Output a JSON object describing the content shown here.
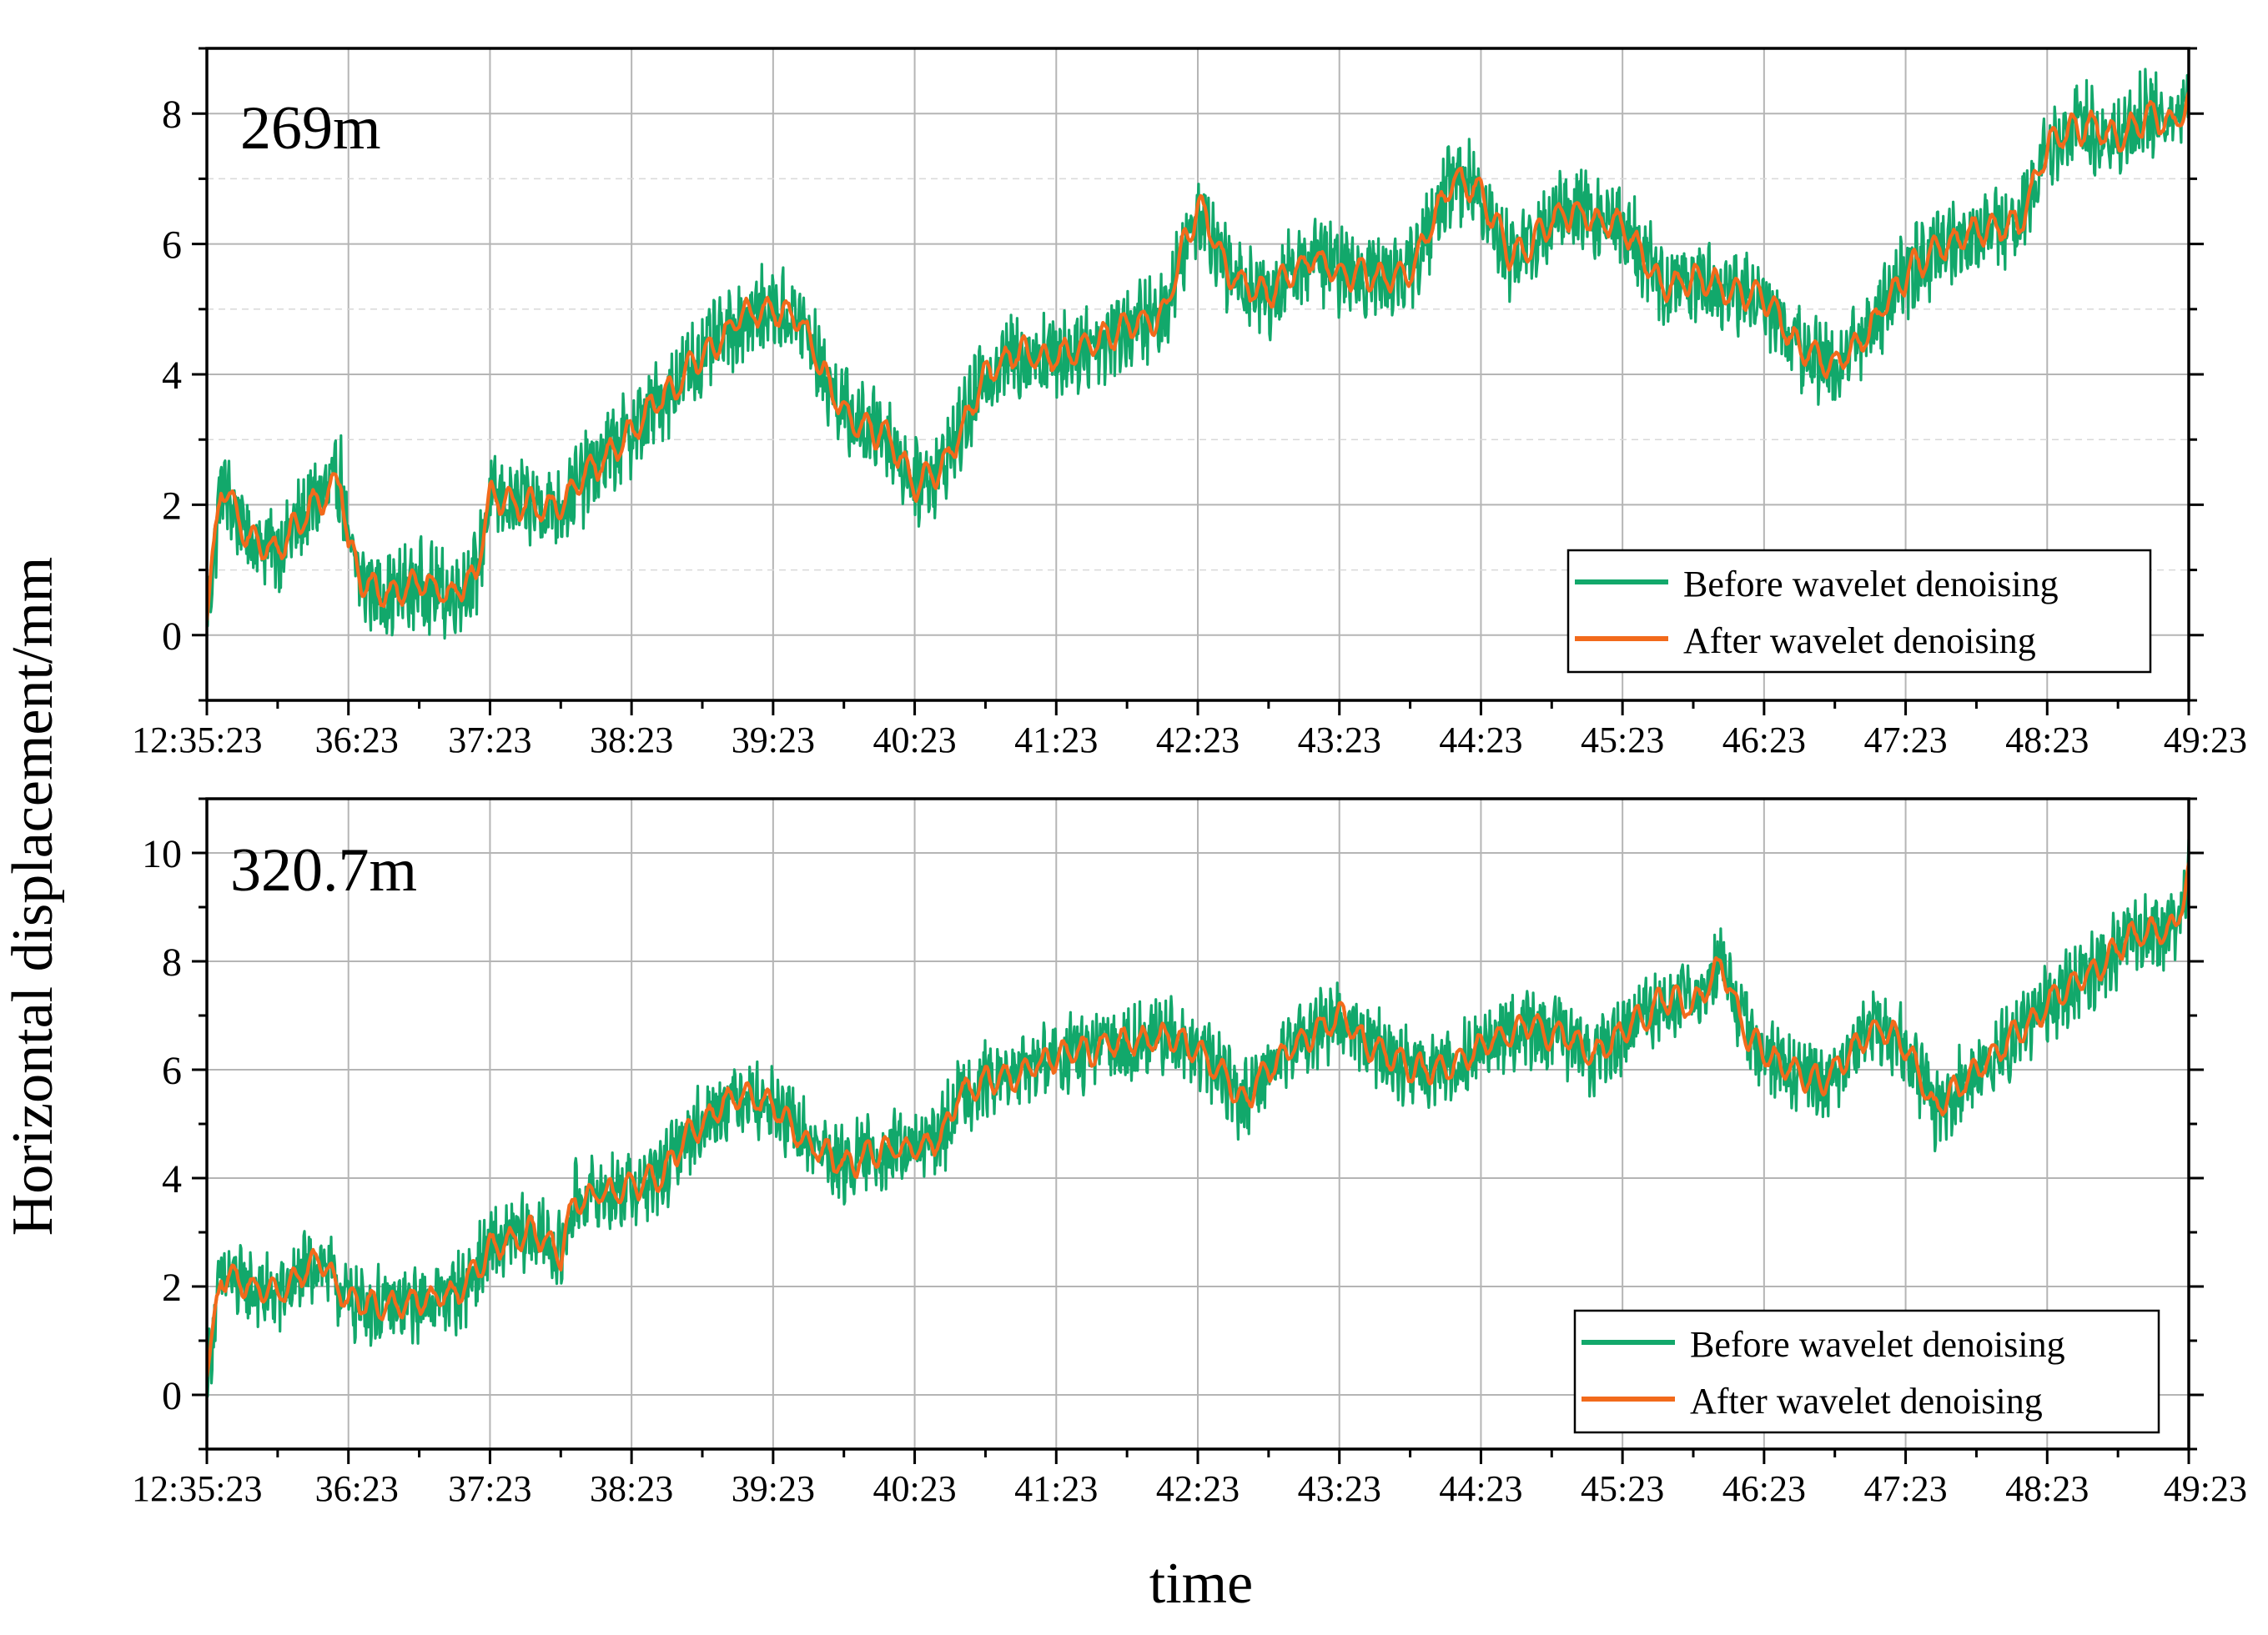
{
  "figure": {
    "ylabel": "Horizontal displacement/mm",
    "xlabel": "time"
  },
  "colors": {
    "before": "#12a86b",
    "after": "#f26a1b",
    "grid": "#b5b5b5",
    "axis": "#000000"
  },
  "chart_data": [
    {
      "type": "line",
      "title": "269m",
      "xlabel": "time",
      "ylabel": "Horizontal displacement/mm",
      "x_tick_labels": [
        "12:35:23",
        "36:23",
        "37:23",
        "38:23",
        "39:23",
        "40:23",
        "41:23",
        "42:23",
        "43:23",
        "44:23",
        "45:23",
        "46:23",
        "47:23",
        "48:23",
        "49:23"
      ],
      "x_range_minutes": [
        0,
        14
      ],
      "ylim": [
        -1,
        9
      ],
      "y_ticks": [
        0,
        2,
        4,
        6,
        8
      ],
      "grid": "on",
      "legend_position": "bottom-right",
      "series": [
        {
          "name": "Before wavelet denoising",
          "noise_amplitude_mm": 0.55,
          "x": [
            0,
            0.1,
            0.3,
            0.5,
            0.75,
            0.95,
            1.0,
            1.1,
            1.3,
            1.5,
            1.7,
            1.9,
            2.0,
            2.2,
            2.5,
            2.8,
            3.0,
            3.2,
            3.5,
            3.8,
            4.0,
            4.2,
            4.4,
            4.6,
            4.8,
            5.0,
            5.2,
            5.4,
            5.5,
            5.7,
            6.0,
            6.3,
            6.5,
            6.75,
            7.0,
            7.1,
            7.2,
            7.3,
            7.5,
            7.6,
            7.8,
            8.0,
            8.3,
            8.5,
            8.8,
            9.0,
            9.2,
            9.4,
            9.5,
            9.7,
            9.9,
            10.0,
            10.3,
            10.5,
            10.8,
            11.0,
            11.2,
            11.5,
            11.7,
            11.9,
            12.0,
            12.2,
            12.5,
            12.8,
            13.0,
            13.1,
            13.3,
            13.5,
            13.7,
            13.9,
            14.0
          ],
          "y": [
            0.2,
            2.3,
            1.5,
            1.3,
            2.0,
            2.4,
            1.3,
            0.8,
            0.6,
            0.8,
            0.6,
            0.9,
            2.1,
            2.0,
            2.0,
            2.7,
            3.1,
            3.6,
            4.3,
            4.9,
            5.0,
            4.8,
            3.8,
            3.2,
            3.1,
            2.3,
            2.6,
            3.5,
            4.0,
            4.3,
            4.3,
            4.5,
            4.7,
            4.9,
            6.6,
            6.2,
            5.6,
            5.4,
            5.2,
            5.4,
            5.8,
            5.6,
            5.5,
            5.6,
            7.0,
            6.8,
            5.8,
            6.1,
            6.4,
            6.5,
            6.3,
            6.3,
            5.3,
            5.5,
            5.2,
            5.2,
            4.5,
            4.1,
            4.6,
            5.2,
            5.5,
            5.9,
            6.2,
            6.3,
            7.5,
            7.7,
            7.8,
            7.6,
            8.0,
            7.9,
            8.1
          ]
        },
        {
          "name": "After wavelet denoising",
          "noise_amplitude_mm": 0.18,
          "x": [
            0,
            0.1,
            0.3,
            0.5,
            0.75,
            0.95,
            1.0,
            1.1,
            1.3,
            1.5,
            1.7,
            1.9,
            2.0,
            2.2,
            2.5,
            2.8,
            3.0,
            3.2,
            3.5,
            3.8,
            4.0,
            4.2,
            4.4,
            4.6,
            4.8,
            5.0,
            5.2,
            5.4,
            5.5,
            5.7,
            6.0,
            6.3,
            6.5,
            6.75,
            7.0,
            7.1,
            7.2,
            7.3,
            7.5,
            7.6,
            7.8,
            8.0,
            8.3,
            8.5,
            8.8,
            9.0,
            9.2,
            9.4,
            9.5,
            9.7,
            9.9,
            10.0,
            10.3,
            10.5,
            10.8,
            11.0,
            11.2,
            11.5,
            11.7,
            11.9,
            12.0,
            12.2,
            12.5,
            12.8,
            13.0,
            13.1,
            13.3,
            13.5,
            13.7,
            13.9,
            14.0
          ],
          "y": [
            0.2,
            2.3,
            1.5,
            1.3,
            2.0,
            2.4,
            1.3,
            0.8,
            0.6,
            0.8,
            0.6,
            0.9,
            2.1,
            2.0,
            2.0,
            2.7,
            3.1,
            3.6,
            4.3,
            4.9,
            5.0,
            4.8,
            3.8,
            3.2,
            3.1,
            2.3,
            2.6,
            3.5,
            4.0,
            4.3,
            4.3,
            4.5,
            4.7,
            4.9,
            6.6,
            6.2,
            5.6,
            5.4,
            5.2,
            5.4,
            5.8,
            5.6,
            5.5,
            5.6,
            7.0,
            6.8,
            5.8,
            6.1,
            6.4,
            6.5,
            6.3,
            6.3,
            5.3,
            5.5,
            5.2,
            5.2,
            4.5,
            4.1,
            4.6,
            5.2,
            5.5,
            5.9,
            6.2,
            6.3,
            7.5,
            7.7,
            7.8,
            7.6,
            8.0,
            7.9,
            8.1
          ]
        }
      ]
    },
    {
      "type": "line",
      "title": "320.7m",
      "xlabel": "time",
      "ylabel": "Horizontal displacement/mm",
      "x_tick_labels": [
        "12:35:23",
        "36:23",
        "37:23",
        "38:23",
        "39:23",
        "40:23",
        "41:23",
        "42:23",
        "43:23",
        "44:23",
        "45:23",
        "46:23",
        "47:23",
        "48:23",
        "49:23"
      ],
      "x_range_minutes": [
        0,
        14
      ],
      "ylim": [
        -1,
        11
      ],
      "y_ticks": [
        0,
        2,
        4,
        6,
        8,
        10
      ],
      "grid": "on",
      "legend_position": "bottom-right",
      "series": [
        {
          "name": "Before wavelet denoising",
          "noise_amplitude_mm": 0.6,
          "x": [
            0,
            0.1,
            0.3,
            0.5,
            0.8,
            1.0,
            1.3,
            1.5,
            1.8,
            2.0,
            2.3,
            2.5,
            2.6,
            2.8,
            3.0,
            3.2,
            3.4,
            3.5,
            3.6,
            3.8,
            4.0,
            4.2,
            4.5,
            4.7,
            5.0,
            5.2,
            5.3,
            5.5,
            5.7,
            6.0,
            6.3,
            6.5,
            6.8,
            7.0,
            7.2,
            7.3,
            7.5,
            7.7,
            8.0,
            8.2,
            8.5,
            8.7,
            9.0,
            9.3,
            9.6,
            9.8,
            10.0,
            10.3,
            10.5,
            10.7,
            10.9,
            11.0,
            11.2,
            11.4,
            11.6,
            11.8,
            12.0,
            12.2,
            12.5,
            12.8,
            13.0,
            13.3,
            13.6,
            13.9,
            14.0
          ],
          "y": [
            0.3,
            2.2,
            2.0,
            1.8,
            2.5,
            1.7,
            1.6,
            1.7,
            1.9,
            2.7,
            3.0,
            2.6,
            3.6,
            3.7,
            3.8,
            4.0,
            4.8,
            5.0,
            5.3,
            5.6,
            5.3,
            4.8,
            4.2,
            4.5,
            4.5,
            4.8,
            5.5,
            5.8,
            5.9,
            6.2,
            6.4,
            6.5,
            6.6,
            6.3,
            5.9,
            5.4,
            6.0,
            6.5,
            7.0,
            6.5,
            6.0,
            6.0,
            6.4,
            6.8,
            6.6,
            6.2,
            6.7,
            7.3,
            7.2,
            8.0,
            6.5,
            6.3,
            6.0,
            5.7,
            6.3,
            6.8,
            6.5,
            5.2,
            6.0,
            6.7,
            7.2,
            7.8,
            8.5,
            8.6,
            9.6
          ]
        },
        {
          "name": "After wavelet denoising",
          "noise_amplitude_mm": 0.2,
          "x": [
            0,
            0.1,
            0.3,
            0.5,
            0.8,
            1.0,
            1.3,
            1.5,
            1.8,
            2.0,
            2.3,
            2.5,
            2.6,
            2.8,
            3.0,
            3.2,
            3.4,
            3.5,
            3.6,
            3.8,
            4.0,
            4.2,
            4.5,
            4.7,
            5.0,
            5.2,
            5.3,
            5.5,
            5.7,
            6.0,
            6.3,
            6.5,
            6.8,
            7.0,
            7.2,
            7.3,
            7.5,
            7.7,
            8.0,
            8.2,
            8.5,
            8.7,
            9.0,
            9.3,
            9.6,
            9.8,
            10.0,
            10.3,
            10.5,
            10.7,
            10.9,
            11.0,
            11.2,
            11.4,
            11.6,
            11.8,
            12.0,
            12.2,
            12.5,
            12.8,
            13.0,
            13.3,
            13.6,
            13.9,
            14.0
          ],
          "y": [
            0.3,
            2.2,
            2.0,
            1.8,
            2.5,
            1.7,
            1.6,
            1.7,
            1.9,
            2.7,
            3.0,
            2.6,
            3.6,
            3.7,
            3.8,
            4.0,
            4.8,
            5.0,
            5.3,
            5.6,
            5.3,
            4.8,
            4.2,
            4.5,
            4.5,
            4.8,
            5.5,
            5.8,
            5.9,
            6.2,
            6.4,
            6.5,
            6.6,
            6.3,
            5.9,
            5.4,
            6.0,
            6.5,
            7.0,
            6.5,
            6.0,
            6.0,
            6.4,
            6.8,
            6.6,
            6.2,
            6.7,
            7.3,
            7.2,
            8.0,
            6.5,
            6.3,
            6.0,
            5.7,
            6.3,
            6.8,
            6.5,
            5.2,
            6.0,
            6.7,
            7.2,
            7.8,
            8.5,
            8.6,
            9.6
          ]
        }
      ]
    }
  ]
}
